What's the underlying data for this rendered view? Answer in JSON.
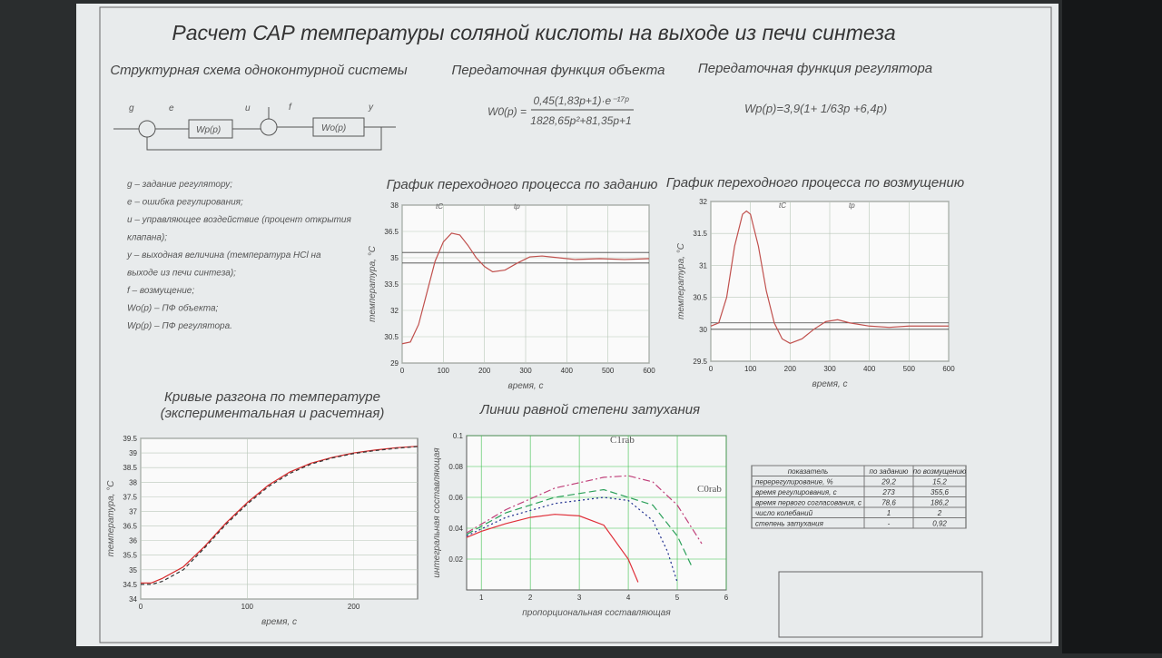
{
  "header": {
    "title": "Расчет САР температуры соляной кислоты на выходе из печи синтеза"
  },
  "scheme": {
    "title": "Структурная схема одноконтурной системы",
    "signals": [
      "g",
      "e",
      "u",
      "f",
      "y"
    ],
    "blocks": [
      "Wp(p)",
      "Wo(p)"
    ]
  },
  "object_tf": {
    "title": "Передаточная функция объекта",
    "lhs": "W0(p) =",
    "numerator": "0,45(1,83p+1)·e⁻¹⁷ᵖ",
    "denominator": "1828,65p²+81,35p+1"
  },
  "regulator_tf": {
    "title": "Передаточная функция регулятора",
    "formula": "Wp(p)=3,9(1+ 1/63p +6,4p)"
  },
  "notation": [
    "g – задание регулятору;",
    "e – ошибка регулирования;",
    "u – управляющее воздействие (процент открытия",
    "клапана);",
    "y – выходная величина (температура HCl на",
    "выходе из печи синтеза);",
    "f – возмущение;",
    "Wo(p) – ПФ объекта;",
    "Wp(p) – ПФ регулятора."
  ],
  "table": {
    "header": [
      "показатель",
      "по заданию",
      "по возмущению"
    ],
    "rows": [
      [
        "перерегулирование, %",
        "29,2",
        "15,2"
      ],
      [
        "время регулирования, с",
        "273",
        "355,6"
      ],
      [
        "время первого согласования, с",
        "78,6",
        "186,2"
      ],
      [
        "число колебаний",
        "1",
        "2"
      ],
      [
        "степень затухания",
        "-",
        "0,92"
      ]
    ]
  },
  "chart_data": [
    {
      "type": "line",
      "title": "График переходного процесса по заданию",
      "xlabel": "время,   с",
      "ylabel": "температура, °С",
      "annotations": [
        "tC",
        "tp"
      ],
      "x": [
        0,
        20,
        40,
        60,
        80,
        100,
        120,
        140,
        160,
        180,
        200,
        220,
        250,
        280,
        310,
        340,
        380,
        420,
        480,
        540,
        600
      ],
      "series": [
        {
          "color": "#c0504d",
          "values": [
            30.1,
            30.2,
            31.2,
            33.0,
            34.8,
            35.9,
            36.4,
            36.3,
            35.7,
            35.0,
            34.5,
            34.2,
            34.3,
            34.7,
            35.05,
            35.1,
            35.0,
            34.9,
            34.95,
            34.9,
            34.95
          ]
        }
      ],
      "hlines": [
        35.3,
        34.7
      ],
      "xlim": [
        0,
        600
      ],
      "xticks": [
        0,
        100,
        200,
        300,
        400,
        500,
        600
      ],
      "ylim": [
        29,
        38
      ],
      "yticks": [
        29,
        30.5,
        32,
        33.5,
        35,
        36.5,
        38
      ],
      "grid": true
    },
    {
      "type": "line",
      "title": "График переходного процесса по возмущению",
      "xlabel": "время,   с",
      "ylabel": "температура, °С",
      "annotations": [
        "tC",
        "tp"
      ],
      "x": [
        0,
        20,
        40,
        60,
        80,
        90,
        100,
        120,
        140,
        160,
        180,
        200,
        230,
        260,
        290,
        320,
        350,
        400,
        450,
        500,
        600
      ],
      "series": [
        {
          "color": "#c0504d",
          "values": [
            30.05,
            30.1,
            30.5,
            31.3,
            31.8,
            31.85,
            31.8,
            31.3,
            30.6,
            30.1,
            29.85,
            29.78,
            29.85,
            30.0,
            30.12,
            30.15,
            30.1,
            30.05,
            30.03,
            30.05,
            30.05
          ]
        }
      ],
      "hlines": [
        30.1,
        30.0
      ],
      "xlim": [
        0,
        600
      ],
      "xticks": [
        0,
        100,
        200,
        300,
        400,
        500,
        600
      ],
      "ylim": [
        29.5,
        32
      ],
      "yticks": [
        29.5,
        30,
        30.5,
        31,
        31.5,
        32
      ],
      "grid": true
    },
    {
      "type": "line",
      "title": "Кривые разгона по температуре",
      "subtitle": "(экспериментальная и расчетная)",
      "xlabel": "время,  с",
      "ylabel": "температура, °С",
      "x": [
        0,
        10,
        20,
        40,
        60,
        80,
        100,
        120,
        140,
        160,
        180,
        200,
        220,
        240,
        260
      ],
      "series": [
        {
          "color": "#d62728",
          "values": [
            34.55,
            34.55,
            34.7,
            35.1,
            35.8,
            36.6,
            37.3,
            37.9,
            38.35,
            38.65,
            38.85,
            39.0,
            39.1,
            39.18,
            39.23
          ]
        },
        {
          "color": "#333333",
          "dash": "4 3",
          "values": [
            34.5,
            34.5,
            34.6,
            35.0,
            35.75,
            36.55,
            37.25,
            37.85,
            38.3,
            38.62,
            38.83,
            38.98,
            39.08,
            39.16,
            39.22
          ]
        }
      ],
      "xlim": [
        0,
        260
      ],
      "xticks": [
        0,
        100,
        200
      ],
      "ylim": [
        34,
        39.5
      ],
      "yticks": [
        34,
        34.5,
        35,
        35.5,
        36,
        36.5,
        37,
        37.5,
        38,
        38.5,
        39,
        39.5
      ],
      "grid": true
    },
    {
      "type": "line",
      "title": "Линии равной степени затухания",
      "xlabel": "пропорциональная составляющая",
      "ylabel": "интегральная составляющая",
      "annotations": [
        "C1rab",
        "C0rab"
      ],
      "series": [
        {
          "color": "#e0303a",
          "x": [
            0.7,
            1,
            1.5,
            2,
            2.5,
            3,
            3.5,
            4,
            4.2
          ],
          "values": [
            0.034,
            0.038,
            0.043,
            0.047,
            0.049,
            0.048,
            0.042,
            0.02,
            0.005
          ]
        },
        {
          "color": "#1f2f8f",
          "dash": "2 3",
          "x": [
            0.7,
            1.5,
            2.5,
            3.5,
            4,
            4.5,
            4.8,
            5
          ],
          "values": [
            0.035,
            0.047,
            0.056,
            0.06,
            0.058,
            0.045,
            0.025,
            0.005
          ]
        },
        {
          "color": "#2ca05a",
          "dash": "8 4",
          "x": [
            0.7,
            1.5,
            2.5,
            3.5,
            4.5,
            5,
            5.3
          ],
          "values": [
            0.036,
            0.05,
            0.06,
            0.065,
            0.055,
            0.035,
            0.015
          ]
        },
        {
          "color": "#c0407a",
          "dash": "8 3 2 3",
          "x": [
            0.7,
            1.5,
            2.5,
            3.5,
            4,
            4.5,
            5,
            5.5
          ],
          "values": [
            0.037,
            0.052,
            0.066,
            0.073,
            0.074,
            0.07,
            0.055,
            0.03
          ]
        }
      ],
      "xlim": [
        0.7,
        6
      ],
      "xticks": [
        1,
        2,
        3,
        4,
        5,
        6
      ],
      "ylim": [
        0,
        0.1
      ],
      "yticks": [
        0.02,
        0.04,
        0.06,
        0.08,
        0.1
      ],
      "grid": true,
      "grid_color": "#3cc04c"
    }
  ]
}
